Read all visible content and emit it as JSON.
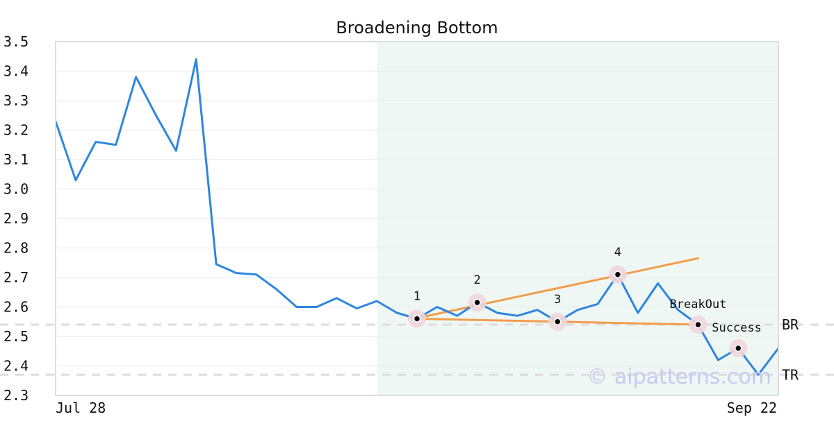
{
  "chart_data": {
    "type": "line",
    "title": "Broadening Bottom",
    "xlabel": "",
    "ylabel": "",
    "ylim": [
      2.3,
      3.5
    ],
    "yticks": [
      "3.5",
      "3.4",
      "3.3",
      "3.2",
      "3.1",
      "3.0",
      "2.9",
      "2.8",
      "2.7",
      "2.6",
      "2.5",
      "2.4",
      "2.3"
    ],
    "x_tick_labels": {
      "start": "Jul 28",
      "end": "Sep 22"
    },
    "grid": "horizontal",
    "colors": {
      "price": "#2e86de",
      "trend": "#f39c4a",
      "pattern_region": "#eef7f3",
      "pivot_halo": "#f0d6dc",
      "reference": "#dddddd"
    },
    "series": [
      {
        "values": [
          3.23,
          3.03,
          3.16,
          3.15,
          3.38,
          3.25,
          3.13,
          3.44,
          2.745,
          2.715,
          2.71,
          2.66,
          2.6,
          2.6,
          2.63,
          2.595,
          2.62,
          2.58,
          2.56,
          2.6,
          2.57,
          2.615,
          2.58,
          2.57,
          2.59,
          2.55,
          2.59,
          2.61,
          2.71,
          2.58,
          2.68,
          2.59,
          2.54,
          2.42,
          2.46,
          2.37,
          2.46
        ]
      }
    ],
    "pattern_region": {
      "start_index": 16,
      "end_index": 36
    },
    "trendlines": [
      {
        "from": [
          18,
          2.562
        ],
        "to": [
          32,
          2.765
        ]
      },
      {
        "from": [
          18,
          2.56
        ],
        "to": [
          32,
          2.54
        ]
      }
    ],
    "pivots": [
      {
        "label": "1",
        "index": 18,
        "value": 2.56
      },
      {
        "label": "2",
        "index": 21,
        "value": 2.615
      },
      {
        "label": "3",
        "index": 25,
        "value": 2.55
      },
      {
        "label": "4",
        "index": 28,
        "value": 2.71
      },
      {
        "label": "BreakOut",
        "index": 32,
        "value": 2.54
      },
      {
        "label": "Success",
        "index": 34,
        "value": 2.46
      }
    ],
    "reference_lines": [
      {
        "label": "BR",
        "value": 2.54
      },
      {
        "label": "TR",
        "value": 2.37
      }
    ],
    "watermark": "© aipatterns.com"
  }
}
